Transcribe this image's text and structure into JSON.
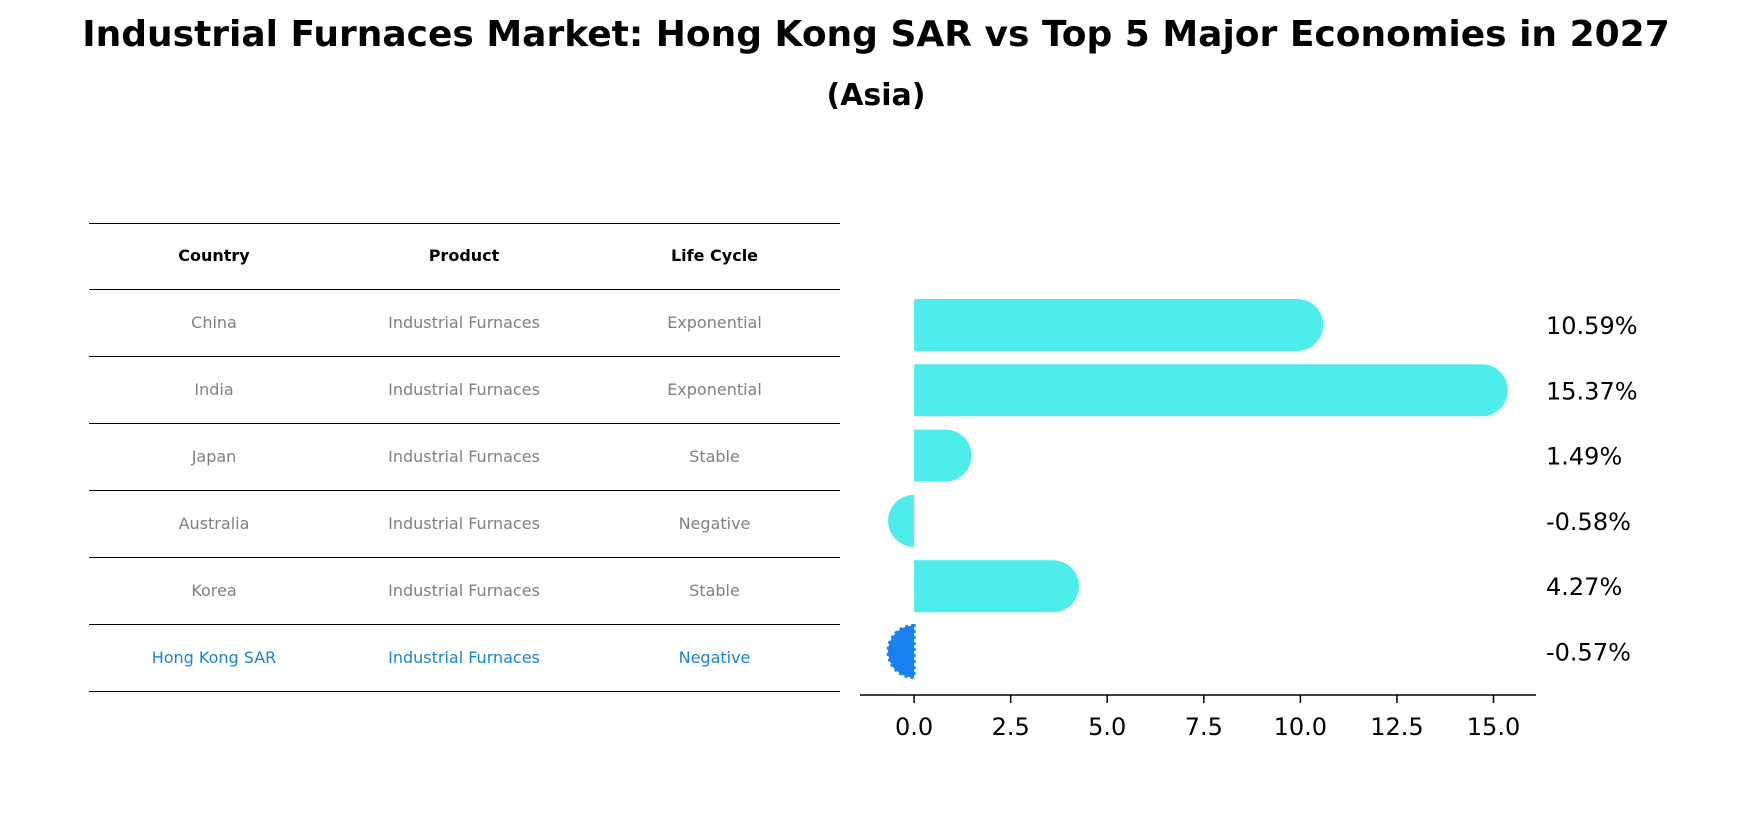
{
  "title": "Industrial Furnaces Market: Hong Kong SAR vs Top 5 Major Economies in 2027",
  "subtitle": "(Asia)",
  "table": {
    "headers": [
      "Country",
      "Product",
      "Life Cycle"
    ],
    "rows": [
      [
        "China",
        "Industrial Furnaces",
        "Exponential"
      ],
      [
        "India",
        "Industrial Furnaces",
        "Exponential"
      ],
      [
        "Japan",
        "Industrial Furnaces",
        "Stable"
      ],
      [
        "Australia",
        "Industrial Furnaces",
        "Negative"
      ],
      [
        "Korea",
        "Industrial Furnaces",
        "Stable"
      ],
      [
        "Hong Kong SAR",
        "Industrial Furnaces",
        "Negative"
      ]
    ],
    "highlight_row": 5
  },
  "colors": {
    "bar": "#4eecea",
    "highlight_bar": "#1a82f0",
    "highlight_text": "#1a82d6",
    "row_text": "#808080"
  },
  "chart_data": {
    "type": "bar",
    "orientation": "horizontal",
    "categories": [
      "China",
      "India",
      "Japan",
      "Australia",
      "Korea",
      "Hong Kong SAR"
    ],
    "values": [
      10.59,
      15.37,
      1.49,
      -0.58,
      4.27,
      -0.57
    ],
    "value_labels": [
      "10.59%",
      "15.37%",
      "1.49%",
      "-0.58%",
      "4.27%",
      "-0.57%"
    ],
    "xticks": [
      0.0,
      2.5,
      5.0,
      7.5,
      10.0,
      12.5,
      15.0
    ],
    "xtick_labels": [
      "0.0",
      "2.5",
      "5.0",
      "7.5",
      "10.0",
      "12.5",
      "15.0"
    ],
    "xlim": [
      -1.4,
      16.1
    ],
    "highlight_index": 5
  }
}
